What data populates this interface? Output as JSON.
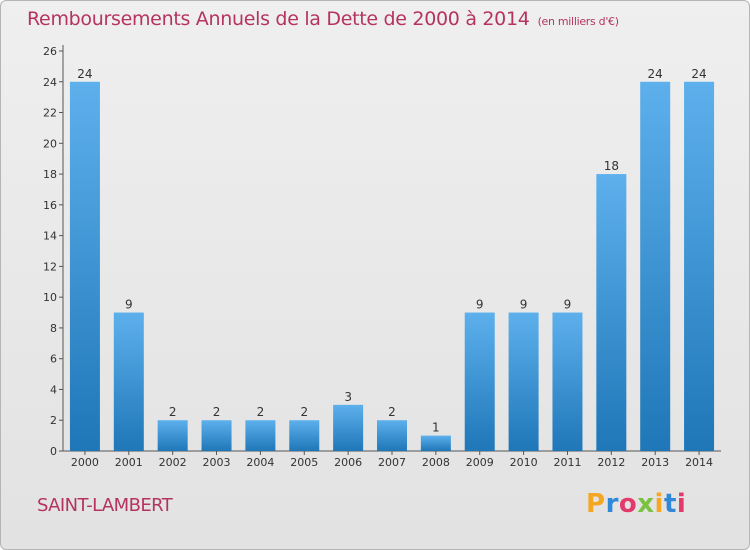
{
  "title": "Remboursements Annuels de la Dette de 2000 à 2014",
  "title_unit": "(en milliers d'€)",
  "commune": "SAINT-LAMBERT",
  "brand": {
    "letters": [
      "P",
      "r",
      "o",
      "x",
      "i",
      "t",
      "i"
    ],
    "colors": [
      "#f5a623",
      "#2f88d8",
      "#e23a6a",
      "#7cc242",
      "#f5a623",
      "#2f88d8",
      "#e23a6a"
    ]
  },
  "colors": {
    "bar_top": "#5db0ec",
    "bar_bottom": "#1f77b8",
    "title": "#b5345f"
  },
  "chart_data": {
    "type": "bar",
    "categories": [
      "2000",
      "2001",
      "2002",
      "2003",
      "2004",
      "2005",
      "2006",
      "2007",
      "2008",
      "2009",
      "2010",
      "2011",
      "2012",
      "2013",
      "2014"
    ],
    "values": [
      24,
      9,
      2,
      2,
      2,
      2,
      3,
      2,
      1,
      9,
      9,
      9,
      18,
      24,
      24
    ],
    "ylim": [
      0,
      26
    ],
    "yticks": [
      0,
      2,
      4,
      6,
      8,
      10,
      12,
      14,
      16,
      18,
      20,
      22,
      24,
      26
    ],
    "grid": false,
    "legend": "none"
  }
}
